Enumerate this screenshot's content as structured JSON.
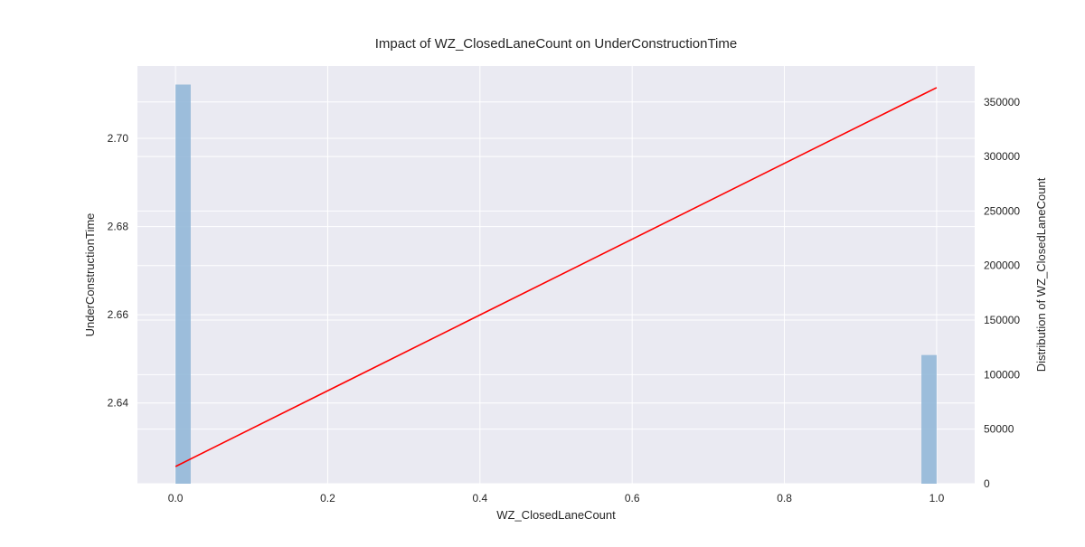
{
  "chart_data": {
    "type": "bar",
    "title": "Impact of WZ_ClosedLaneCount on UnderConstructionTime",
    "xlabel": "WZ_ClosedLaneCount",
    "ylabel": "UnderConstructionTime",
    "y2label": "Distribution of WZ_ClosedLaneCount",
    "xlim": [
      -0.05,
      1.05
    ],
    "ylim": [
      2.6217,
      2.7164
    ],
    "y2lim": [
      0,
      383000
    ],
    "x_ticks": [
      0.0,
      0.2,
      0.4,
      0.6,
      0.8,
      1.0
    ],
    "x_tick_labels": [
      "0.0",
      "0.2",
      "0.4",
      "0.6",
      "0.8",
      "1.0"
    ],
    "y_ticks": [
      2.64,
      2.66,
      2.68,
      2.7
    ],
    "y_tick_labels": [
      "2.64",
      "2.66",
      "2.68",
      "2.70"
    ],
    "y2_ticks": [
      0,
      50000,
      100000,
      150000,
      200000,
      250000,
      300000,
      350000
    ],
    "y2_tick_labels": [
      "0",
      "50000",
      "100000",
      "150000",
      "200000",
      "250000",
      "300000",
      "350000"
    ],
    "grid": true,
    "histogram": {
      "axis": "right",
      "color": "#93b8d8",
      "bin_width": 0.02,
      "bins": [
        {
          "x_start": 0.0,
          "x_end": 0.02,
          "count": 366000
        },
        {
          "x_start": 0.98,
          "x_end": 1.0,
          "count": 118000
        }
      ]
    },
    "line": {
      "axis": "left",
      "color": "#ff0000",
      "x": [
        0.0,
        1.0
      ],
      "y": [
        2.6256,
        2.7115
      ]
    }
  }
}
